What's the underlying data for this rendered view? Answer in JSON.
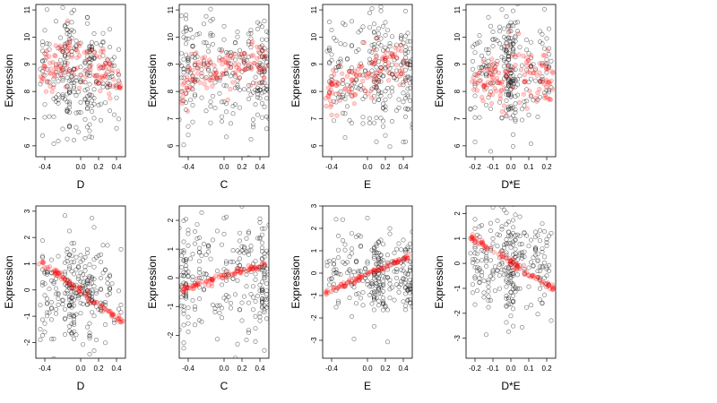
{
  "figure": {
    "ylabel": "Expression",
    "black_point_color": "#000000",
    "red_point_color": "#ff0000",
    "background": "#ffffff"
  },
  "chart_data": [
    {
      "type": "scatter",
      "xlabel": "D",
      "ylabel": "Expression",
      "xlim": [
        -0.5,
        0.5
      ],
      "ylim": [
        5.6,
        11.2
      ],
      "xticks": [
        -0.4,
        0.0,
        0.2,
        0.4
      ],
      "xtick_labels": [
        "-0.4",
        "0.0",
        "0.2",
        "0.4"
      ],
      "yticks": [
        6,
        7,
        8,
        9,
        10,
        11
      ],
      "black": {
        "n": 260,
        "center": 8.6,
        "spread": 1.1,
        "dense_x": [
          -0.12,
          0.1
        ]
      },
      "red": {
        "line": [
          [
            -0.45,
            8.6
          ],
          [
            -0.1,
            9.2
          ],
          [
            0.0,
            8.9
          ],
          [
            0.12,
            9.0
          ],
          [
            0.45,
            8.2
          ]
        ],
        "band": 0.45,
        "n": 120
      }
    },
    {
      "type": "scatter",
      "xlabel": "C",
      "ylabel": "Expression",
      "xlim": [
        -0.5,
        0.5
      ],
      "ylim": [
        5.6,
        11.2
      ],
      "xticks": [
        -0.4,
        0.0,
        0.2,
        0.4
      ],
      "xtick_labels": [
        "-0.4",
        "0.0",
        "0.2",
        "0.4"
      ],
      "yticks": [
        6,
        7,
        8,
        9,
        10,
        11
      ],
      "black": {
        "n": 260,
        "center": 8.7,
        "spread": 1.1,
        "dense_x": [
          -0.45,
          0.45
        ]
      },
      "red": {
        "line": [
          [
            -0.47,
            8.0
          ],
          [
            -0.3,
            8.7
          ],
          [
            0.0,
            8.8
          ],
          [
            0.3,
            9.0
          ],
          [
            0.47,
            9.1
          ]
        ],
        "band": 0.4,
        "n": 120
      }
    },
    {
      "type": "scatter",
      "xlabel": "E",
      "ylabel": "Expression",
      "xlim": [
        -0.5,
        0.5
      ],
      "ylim": [
        5.6,
        11.2
      ],
      "xticks": [
        -0.4,
        0.0,
        0.2,
        0.4
      ],
      "xtick_labels": [
        "-0.4",
        "0.0",
        "0.2",
        "0.4"
      ],
      "yticks": [
        6,
        7,
        8,
        9,
        10,
        11
      ],
      "black": {
        "n": 260,
        "center": 8.6,
        "spread": 1.1,
        "dense_x": [
          0.12,
          0.45
        ]
      },
      "red": {
        "line": [
          [
            -0.47,
            8.0
          ],
          [
            -0.2,
            8.4
          ],
          [
            0.0,
            8.6
          ],
          [
            0.12,
            9.0
          ],
          [
            0.45,
            8.8
          ]
        ],
        "band": 0.45,
        "n": 120
      }
    },
    {
      "type": "scatter",
      "xlabel": "D*E",
      "ylabel": "Expression",
      "xlim": [
        -0.25,
        0.25
      ],
      "ylim": [
        5.6,
        11.2
      ],
      "xticks": [
        -0.2,
        -0.1,
        0.0,
        0.1,
        0.2
      ],
      "xtick_labels": [
        "-0.2",
        "-0.1",
        "0.0",
        "0.1",
        "0.2"
      ],
      "yticks": [
        6,
        7,
        8,
        9,
        10,
        11
      ],
      "black": {
        "n": 260,
        "center": 8.7,
        "spread": 1.1,
        "dense_x": [
          0.0,
          0.0
        ]
      },
      "red": {
        "line": [
          [
            -0.22,
            8.3
          ],
          [
            -0.05,
            8.3
          ],
          [
            0.0,
            9.0
          ],
          [
            0.05,
            8.5
          ],
          [
            0.24,
            8.2
          ]
        ],
        "band": 0.5,
        "n": 130
      }
    },
    {
      "type": "scatter",
      "xlabel": "D",
      "ylabel": "Expression",
      "xlim": [
        -0.5,
        0.5
      ],
      "ylim": [
        -2.6,
        3.2
      ],
      "xticks": [
        -0.4,
        0.0,
        0.2,
        0.4
      ],
      "xtick_labels": [
        "-0.4",
        "0.0",
        "0.2",
        "0.4"
      ],
      "yticks": [
        -2,
        -1,
        0,
        1,
        2,
        3
      ],
      "black": {
        "n": 260,
        "center": 0.0,
        "spread": 1.0,
        "dense_x": [
          -0.12,
          0.1
        ]
      },
      "red": {
        "line": [
          [
            -0.47,
            1.1
          ],
          [
            0.47,
            -1.2
          ]
        ],
        "band": 0.08,
        "n": 90
      }
    },
    {
      "type": "scatter",
      "xlabel": "C",
      "ylabel": "Expression",
      "xlim": [
        -0.5,
        0.5
      ],
      "ylim": [
        -2.8,
        2.5
      ],
      "xticks": [
        -0.4,
        0.0,
        0.2,
        0.4
      ],
      "xtick_labels": [
        "-0.4",
        "0.0",
        "0.2",
        "0.4"
      ],
      "yticks": [
        -2,
        -1,
        0,
        1,
        2
      ],
      "black": {
        "n": 260,
        "center": 0.0,
        "spread": 1.0,
        "dense_x": [
          -0.45,
          0.45
        ]
      },
      "red": {
        "line": [
          [
            -0.47,
            -0.4
          ],
          [
            0.47,
            0.5
          ]
        ],
        "band": 0.06,
        "n": 90
      }
    },
    {
      "type": "scatter",
      "xlabel": "E",
      "ylabel": "Expression",
      "xlim": [
        -0.5,
        0.5
      ],
      "ylim": [
        -3.8,
        3.0
      ],
      "xticks": [
        -0.4,
        0.0,
        0.2,
        0.4
      ],
      "xtick_labels": [
        "-0.4",
        "0.0",
        "0.2",
        "0.4"
      ],
      "yticks": [
        -3,
        -2,
        -1,
        0,
        1,
        2,
        3
      ],
      "black": {
        "n": 260,
        "center": 0.0,
        "spread": 1.0,
        "dense_x": [
          0.12,
          0.45
        ]
      },
      "red": {
        "line": [
          [
            -0.47,
            -0.9
          ],
          [
            0.47,
            0.8
          ]
        ],
        "band": 0.06,
        "n": 90
      }
    },
    {
      "type": "scatter",
      "xlabel": "D*E",
      "ylabel": "Expression",
      "xlim": [
        -0.25,
        0.25
      ],
      "ylim": [
        -3.8,
        2.3
      ],
      "xticks": [
        -0.2,
        -0.1,
        0.0,
        0.1,
        0.2
      ],
      "xtick_labels": [
        "-0.2",
        "-0.1",
        "0.0",
        "0.1",
        "0.2"
      ],
      "yticks": [
        -3,
        -2,
        -1,
        0,
        1,
        2
      ],
      "black": {
        "n": 260,
        "center": 0.0,
        "spread": 1.0,
        "dense_x": [
          0.0,
          0.0
        ]
      },
      "red": {
        "line": [
          [
            -0.22,
            1.05
          ],
          [
            0.24,
            -1.05
          ]
        ],
        "band": 0.07,
        "n": 90
      }
    }
  ]
}
